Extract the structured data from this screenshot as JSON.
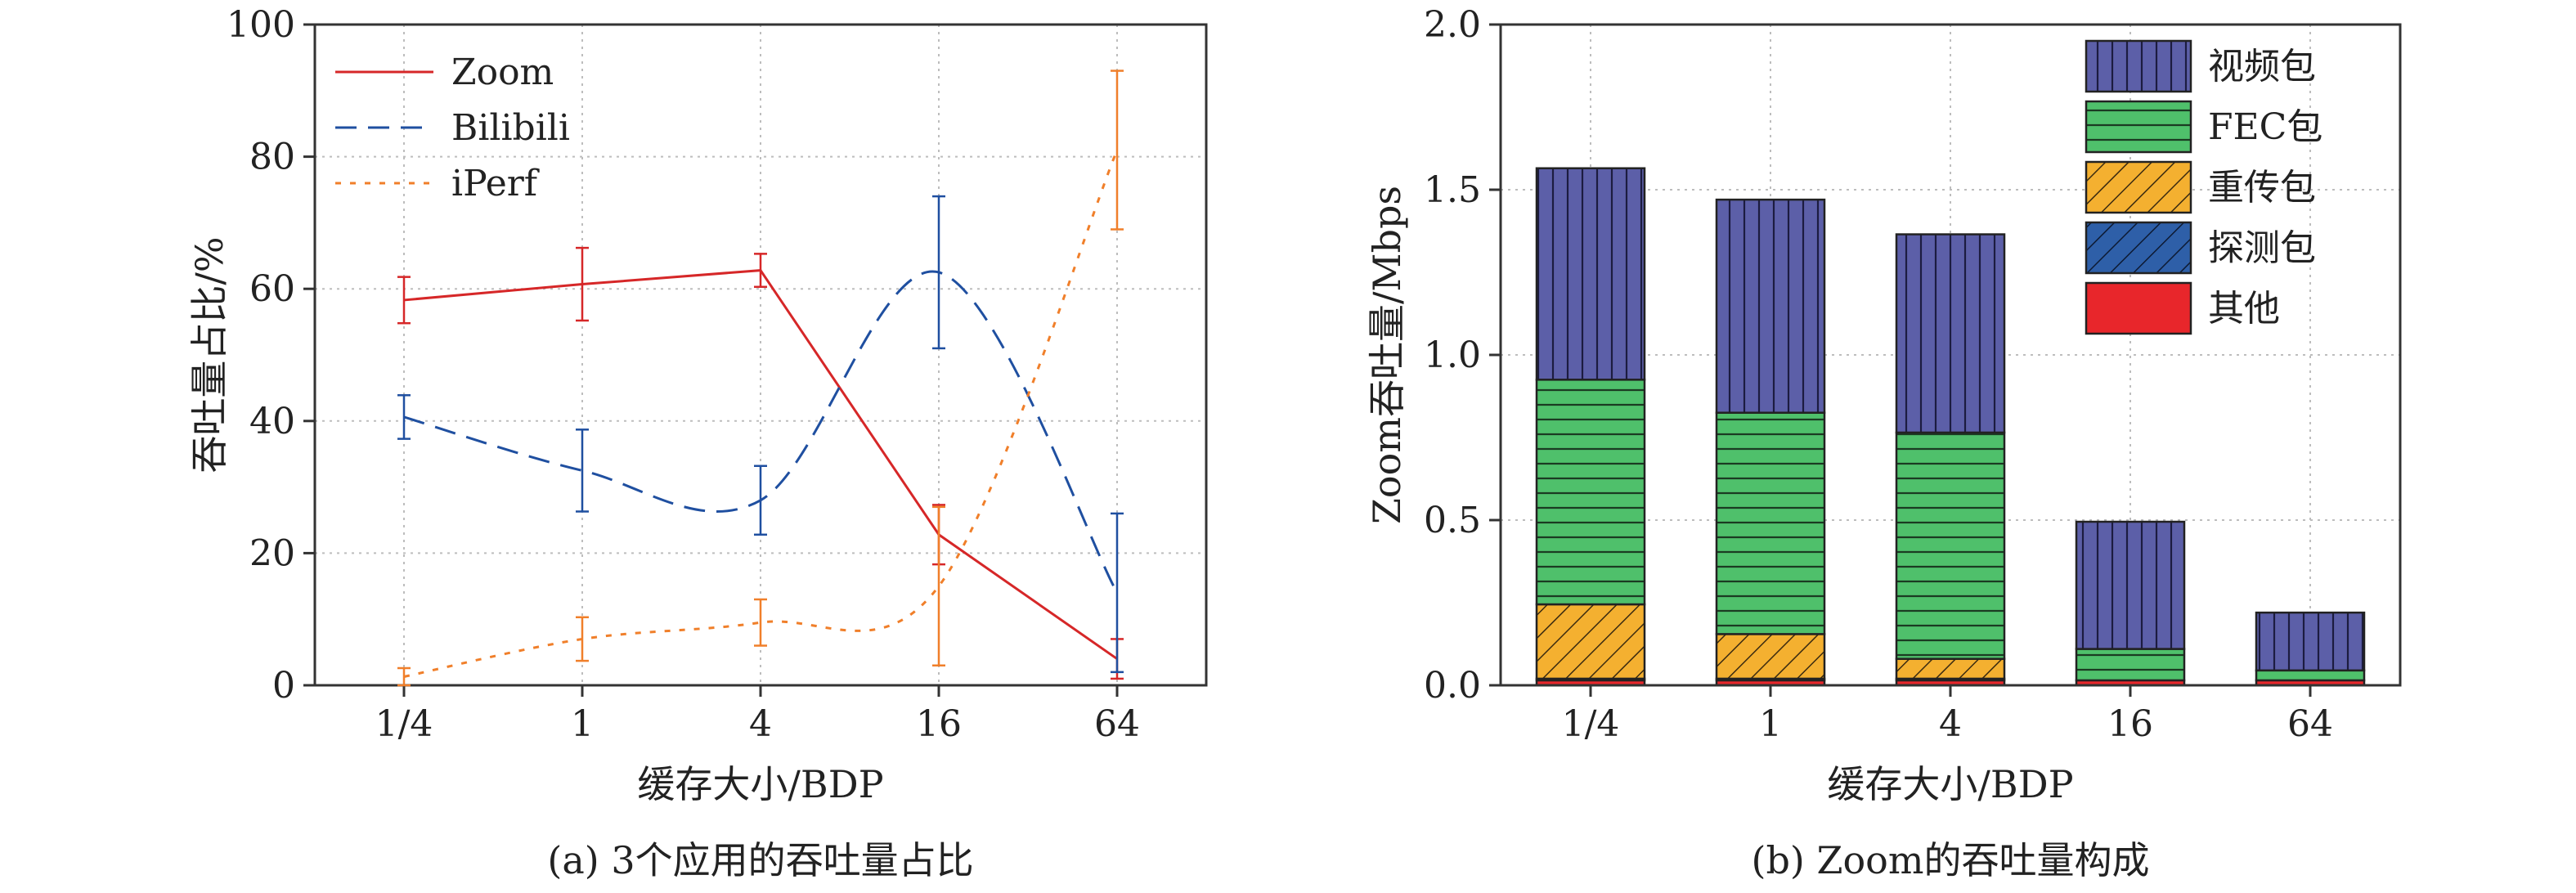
{
  "chart_data": [
    {
      "type": "line",
      "panel": "a",
      "caption": "(a)  3个应用的吞吐量占比",
      "xlabel": "缓存大小/BDP",
      "ylabel": "吞吐量占比/%",
      "categories": [
        "1/4",
        "1",
        "4",
        "16",
        "64"
      ],
      "ylim": [
        0,
        100
      ],
      "yticks": [
        "0",
        "20",
        "40",
        "60",
        "80",
        "100"
      ],
      "grid": true,
      "legend_position": "top-left",
      "series": [
        {
          "name": "Zoom",
          "color": "#d62728",
          "dash": "solid",
          "values": [
            58.3,
            60.7,
            62.8,
            22.8,
            4.0
          ],
          "err": [
            3.5,
            5.5,
            2.5,
            4.5,
            3.0
          ]
        },
        {
          "name": "Bilibili",
          "color": "#1f4fa0",
          "dash": "dashed",
          "values": [
            40.6,
            32.5,
            28.0,
            62.5,
            14.0
          ],
          "err": [
            3.3,
            6.2,
            5.2,
            11.5,
            12.0
          ]
        },
        {
          "name": "iPerf",
          "color": "#f07f2a",
          "dash": "dotted",
          "values": [
            1.3,
            7.0,
            9.5,
            15.0,
            81.0
          ],
          "err": [
            1.3,
            3.3,
            3.5,
            12.0,
            12.0
          ]
        }
      ]
    },
    {
      "type": "bar",
      "stacked": true,
      "panel": "b",
      "caption": "(b)  Zoom的吞吐量构成",
      "xlabel": "缓存大小/BDP",
      "ylabel": "Zoom吞吐量/Mbps",
      "categories": [
        "1/4",
        "1",
        "4",
        "16",
        "64"
      ],
      "ylim": [
        0,
        2.0
      ],
      "yticks": [
        "0.0",
        "0.5",
        "1.0",
        "1.5",
        "2.0"
      ],
      "grid": true,
      "legend_position": "top-right",
      "series": [
        {
          "name": "其他",
          "color": "#e8262b",
          "pattern": "none",
          "values": [
            0.015,
            0.015,
            0.015,
            0.015,
            0.015
          ]
        },
        {
          "name": "探测包",
          "color": "#2e5fa8",
          "pattern": "hatch-diagonal",
          "values": [
            0.005,
            0.005,
            0.005,
            0.0,
            0.0
          ]
        },
        {
          "name": "重传包",
          "color": "#f4b030",
          "pattern": "hatch-diagonal",
          "values": [
            0.225,
            0.135,
            0.06,
            0.0,
            0.0
          ]
        },
        {
          "name": "FEC包",
          "color": "#4fc06b",
          "pattern": "horizontal",
          "values": [
            0.68,
            0.67,
            0.685,
            0.095,
            0.03
          ]
        },
        {
          "name": "视频包",
          "color": "#5c5fa8",
          "pattern": "vertical",
          "values": [
            0.64,
            0.645,
            0.6,
            0.385,
            0.175
          ]
        }
      ],
      "legend_order": [
        "视频包",
        "FEC包",
        "重传包",
        "探测包",
        "其他"
      ]
    }
  ]
}
